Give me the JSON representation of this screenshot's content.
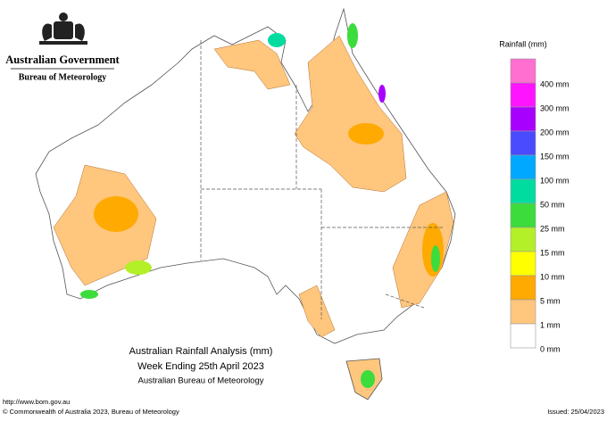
{
  "header": {
    "government": "Australian Government",
    "agency": "Bureau of Meteorology"
  },
  "legend": {
    "title": "Rainfall (mm)",
    "items": [
      {
        "label": "400 mm",
        "color": "#ff6fcf"
      },
      {
        "label": "300 mm",
        "color": "#ff14ff"
      },
      {
        "label": "200 mm",
        "color": "#a800ff"
      },
      {
        "label": "150 mm",
        "color": "#4a4aff"
      },
      {
        "label": "100 mm",
        "color": "#00a8ff"
      },
      {
        "label": "50 mm",
        "color": "#00dca0"
      },
      {
        "label": "25 mm",
        "color": "#3cdc3c"
      },
      {
        "label": "15 mm",
        "color": "#b4f028"
      },
      {
        "label": "10 mm",
        "color": "#ffff00"
      },
      {
        "label": "5 mm",
        "color": "#ffaa00"
      },
      {
        "label": "1 mm",
        "color": "#ffc67d"
      },
      {
        "label": "0 mm",
        "color": "#ffffff"
      }
    ]
  },
  "caption": {
    "title": "Australian Rainfall Analysis (mm)",
    "subtitle": "Week Ending 25th April 2023",
    "source": "Australian Bureau of Meteorology"
  },
  "footer": {
    "url": "http://www.bom.gov.au",
    "copyright": "© Commonwealth of Australia 2023, Bureau of Meteorology",
    "issued": "Issued: 25/04/2023"
  }
}
